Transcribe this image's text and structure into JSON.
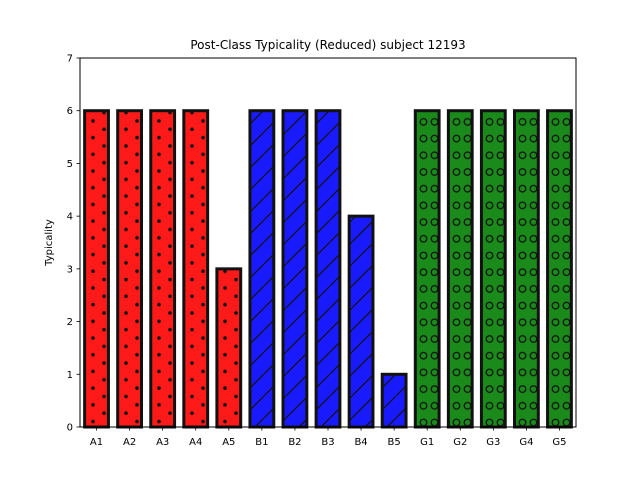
{
  "chart_data": {
    "type": "bar",
    "title": "Post-Class Typicality (Reduced) subject 12193",
    "xlabel": "",
    "ylabel": "Typicality",
    "ylim": [
      0,
      7
    ],
    "yticks": [
      "0",
      "1",
      "2",
      "3",
      "4",
      "5",
      "6",
      "7"
    ],
    "grid": false,
    "categories": [
      "A1",
      "A2",
      "A3",
      "A4",
      "A5",
      "B1",
      "B2",
      "B3",
      "B4",
      "B5",
      "G1",
      "G2",
      "G3",
      "G4",
      "G5"
    ],
    "values": [
      6,
      6,
      6,
      6,
      3,
      6,
      6,
      6,
      4,
      1,
      6,
      6,
      6,
      6,
      6
    ],
    "groups": [
      {
        "members": [
          "A1",
          "A2",
          "A3",
          "A4",
          "A5"
        ],
        "color": "#ff1a1a",
        "hatch": "dots"
      },
      {
        "members": [
          "B1",
          "B2",
          "B3",
          "B4",
          "B5"
        ],
        "color": "#1a1aff",
        "hatch": "diagonal"
      },
      {
        "members": [
          "G1",
          "G2",
          "G3",
          "G4",
          "G5"
        ],
        "color": "#1a8a1a",
        "hatch": "circles"
      }
    ],
    "edge_color": "#111111"
  }
}
